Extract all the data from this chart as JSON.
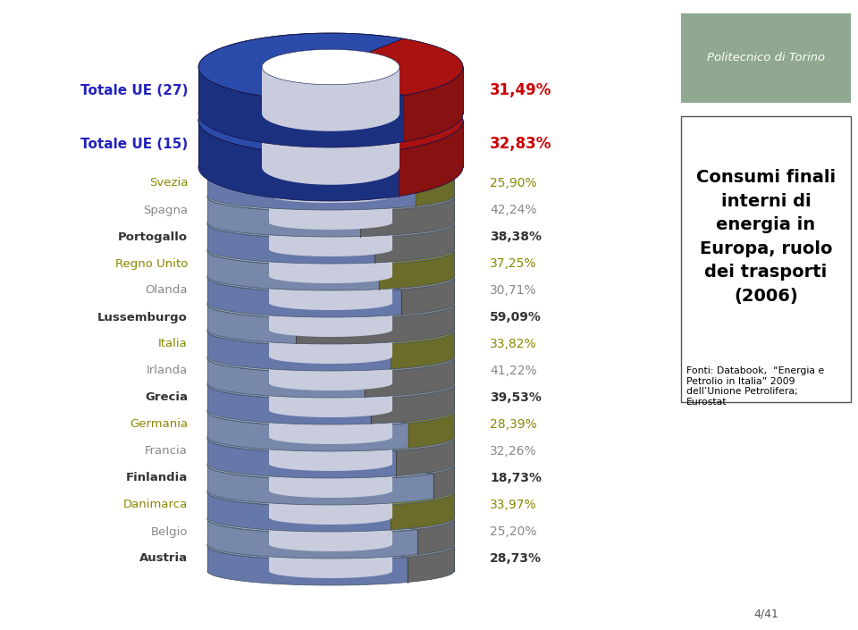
{
  "labels": [
    "Totale UE (27)",
    "Totale UE (15)",
    "Svezia",
    "Spagna",
    "Portogallo",
    "Regno Unito",
    "Olanda",
    "Lussemburgo",
    "Italia",
    "Irlanda",
    "Grecia",
    "Germania",
    "Francia",
    "Finlandia",
    "Danimarca",
    "Belgio",
    "Austria"
  ],
  "values": [
    31.49,
    32.83,
    25.9,
    42.24,
    38.38,
    37.25,
    30.71,
    59.09,
    33.82,
    41.22,
    39.53,
    28.39,
    32.26,
    18.73,
    33.97,
    25.2,
    28.73
  ],
  "label_colors": [
    "#2222BB",
    "#2222BB",
    "#888800",
    "#888888",
    "#333333",
    "#888800",
    "#888888",
    "#333333",
    "#888800",
    "#888888",
    "#333333",
    "#888800",
    "#888888",
    "#333333",
    "#888800",
    "#888888",
    "#333333"
  ],
  "value_colors": [
    "#CC0000",
    "#CC0000",
    "#888800",
    "#888888",
    "#333333",
    "#888800",
    "#888888",
    "#333333",
    "#888800",
    "#888888",
    "#333333",
    "#888800",
    "#888888",
    "#333333",
    "#888800",
    "#888888",
    "#333333"
  ],
  "label_bold": [
    true,
    true,
    false,
    false,
    true,
    false,
    false,
    true,
    false,
    false,
    true,
    false,
    false,
    true,
    false,
    false,
    true
  ],
  "title_text": "Consumi finali\ninterni di\nenergia in\nEuropa, ruolo\ndei trasporti\n(2006)",
  "fonti_text": "Fonti: Databook,  “Energia e\nPetrolio in Italia” 2009\ndell’Unione Petrolifera;\nEurostat",
  "politecnico_text": "Politecnico di Torino",
  "page_text": "4/41",
  "bg_color": "#FFFFFF"
}
